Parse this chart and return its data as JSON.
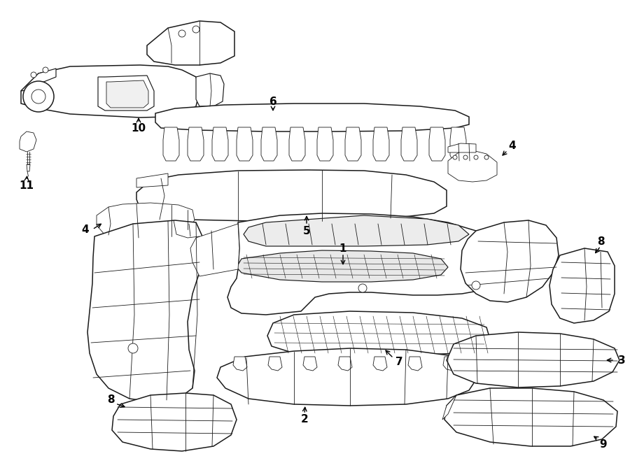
{
  "background_color": "#ffffff",
  "line_color": "#1a1a1a",
  "lw": 1.1,
  "lw_thin": 0.6,
  "lw_med": 0.85,
  "fig_width": 9.0,
  "fig_height": 6.62,
  "dpi": 100
}
